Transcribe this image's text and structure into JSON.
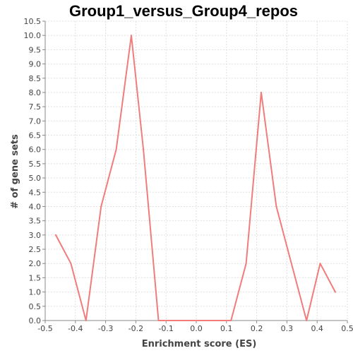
{
  "chart_data": {
    "type": "line",
    "title": "Group1_versus_Group4_repos",
    "xlabel": "Enrichment score (ES)",
    "ylabel": "# of gene sets",
    "xlim": [
      -0.5,
      0.5
    ],
    "ylim": [
      0,
      10.5
    ],
    "x_ticks": [
      "-0.5",
      "-0.4",
      "-0.3",
      "-0.2",
      "-0.1",
      "0.0",
      "0.1",
      "0.2",
      "0.3",
      "0.4",
      "0.5"
    ],
    "y_ticks": [
      "0.0",
      "0.5",
      "1.0",
      "1.5",
      "2.0",
      "2.5",
      "3.0",
      "3.5",
      "4.0",
      "4.5",
      "5.0",
      "5.5",
      "6.0",
      "6.5",
      "7.0",
      "7.5",
      "8.0",
      "8.5",
      "9.0",
      "9.5",
      "10.0",
      "10.5"
    ],
    "grid": true,
    "series": [
      {
        "color": "#f07c7c",
        "x": [
          -0.465,
          -0.415,
          -0.365,
          -0.315,
          -0.265,
          -0.215,
          -0.175,
          -0.125,
          0.115,
          0.165,
          0.215,
          0.265,
          0.315,
          0.365,
          0.41,
          0.46
        ],
        "y": [
          3,
          2,
          0,
          4,
          6,
          10,
          6,
          0,
          0,
          2,
          8,
          4,
          2,
          0,
          2,
          1
        ]
      }
    ]
  }
}
